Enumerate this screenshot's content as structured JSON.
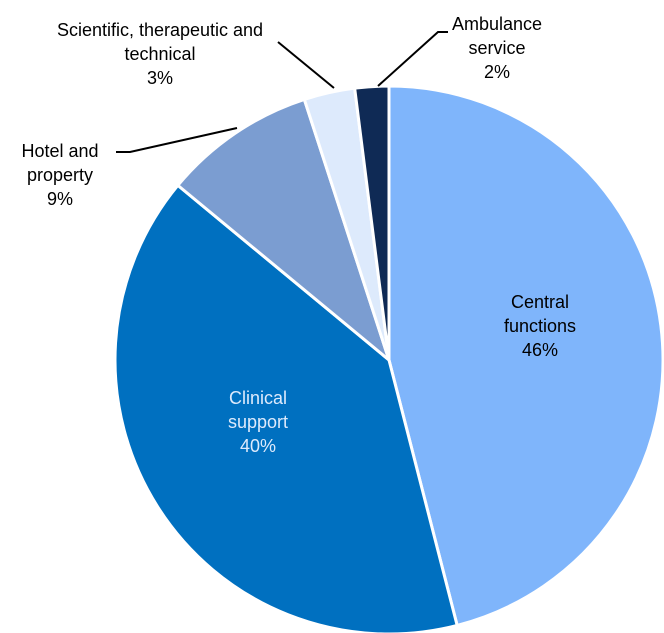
{
  "chart_data": {
    "type": "pie",
    "categories": [
      "Central functions",
      "Clinical support",
      "Hotel and property",
      "Scientific, therapeutic and technical",
      "Ambulance service"
    ],
    "values": [
      46,
      40,
      9,
      3,
      2
    ],
    "value_labels": [
      "46%",
      "40%",
      "9%",
      "3%",
      "2%"
    ],
    "colors": [
      "#7fb5fb",
      "#0070c0",
      "#7b9dd1",
      "#ddeafc",
      "#0f2a55"
    ]
  }
}
